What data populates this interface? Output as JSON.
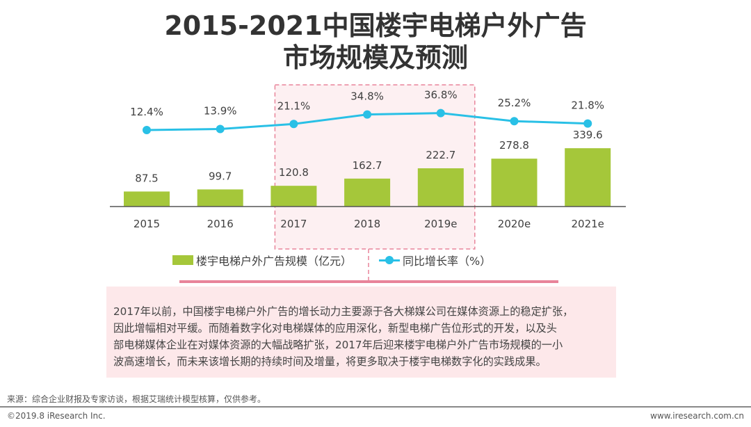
{
  "title_line1": "2015-2021中国楼宇电梯户外广告",
  "title_line2": "市场规模及预测",
  "chart_data": {
    "type": "bar+line",
    "categories": [
      "2015",
      "2016",
      "2017",
      "2018",
      "2019e",
      "2020e",
      "2021e"
    ],
    "series": [
      {
        "name": "楼宇电梯户外广告规模（亿元）",
        "type": "bar",
        "values": [
          87.5,
          99.7,
          120.8,
          162.7,
          222.7,
          278.8,
          339.6
        ],
        "labels": [
          "87.5",
          "99.7",
          "120.8",
          "162.7",
          "222.7",
          "278.8",
          "339.6"
        ],
        "color": "#a5c73a"
      },
      {
        "name": "同比增长率（%）",
        "type": "line",
        "values": [
          12.4,
          13.9,
          21.1,
          34.8,
          36.8,
          25.2,
          21.8
        ],
        "labels": [
          "12.4%",
          "13.9%",
          "21.1%",
          "34.8%",
          "36.8%",
          "25.2%",
          "21.8%"
        ],
        "color": "#29c0e6"
      }
    ],
    "highlight": [
      "2017",
      "2018",
      "2019e"
    ],
    "highlight_color": "#e8849a",
    "legend_placement": "bottom",
    "grid": false
  },
  "note": [
    "2017年以前，中国楼宇电梯户外广告的增长动力主要源于各大梯媒公司在媒体资源上的稳定扩张，",
    "因此增幅相对平缓。而随着数字化对电梯媒体的应用深化，新型电梯广告位形式的开发，以及头",
    "部电梯媒体企业在对媒体资源的大幅战略扩张，2017年后迎来楼宇电梯户外广告市场规模的一小",
    "波高速增长，而未来该增长期的持续时间及增量，将更多取决于楼宇电梯数字化的实践成果。"
  ],
  "footer": {
    "source": "来源：综合企业财报及专家访谈，根据艾瑞统计模型核算，仅供参考。",
    "copyright": "©2019.8 iResearch Inc.",
    "url": "www.iresearch.com.cn"
  }
}
